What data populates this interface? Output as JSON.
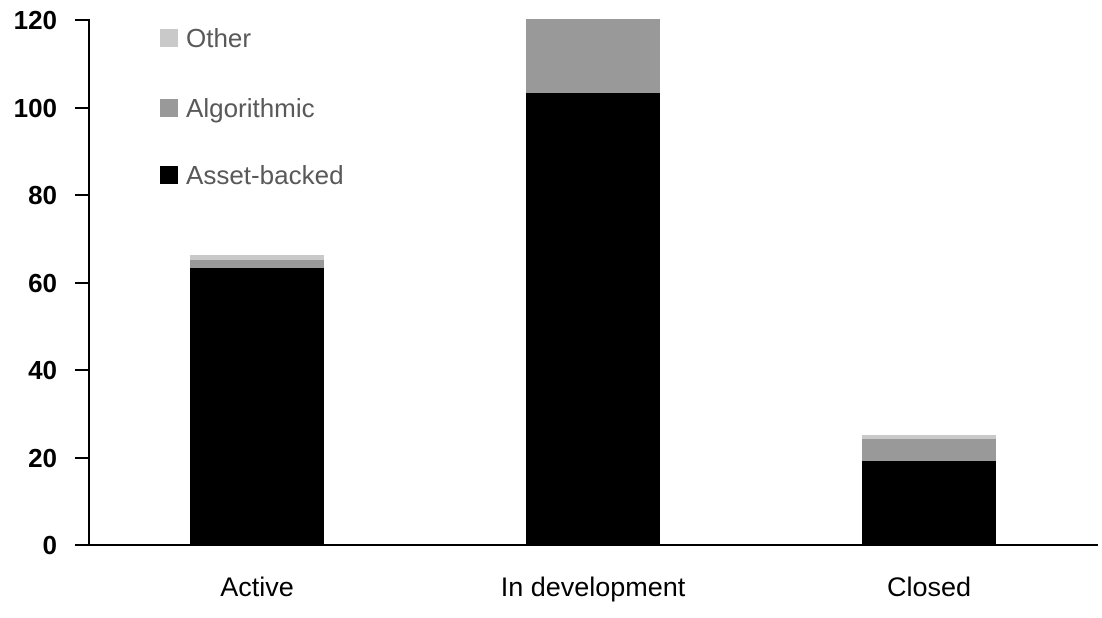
{
  "chart_data": {
    "type": "bar",
    "stacked": true,
    "title": "",
    "xlabel": "",
    "ylabel": "",
    "categories": [
      "Active",
      "In development",
      "Closed"
    ],
    "series": [
      {
        "name": "Asset-backed",
        "color": "#000000",
        "values": [
          63,
          103,
          19
        ]
      },
      {
        "name": "Algorithmic",
        "color": "#999999",
        "values": [
          2,
          17,
          5
        ]
      },
      {
        "name": "Other",
        "color": "#c9c9c9",
        "values": [
          1,
          0,
          1
        ]
      }
    ],
    "totals": [
      66,
      120,
      25
    ],
    "ylim": [
      0,
      120
    ],
    "yticks": [
      0,
      20,
      40,
      60,
      80,
      100,
      120
    ],
    "grid": false,
    "legend_position": "inside-top-left",
    "legend_order": [
      "Other",
      "Algorithmic",
      "Asset-backed"
    ],
    "colors": {
      "axis": "#000000",
      "tick_label": "#000000",
      "category_label": "#000000",
      "legend_text": "#595959",
      "background": "#ffffff"
    }
  }
}
